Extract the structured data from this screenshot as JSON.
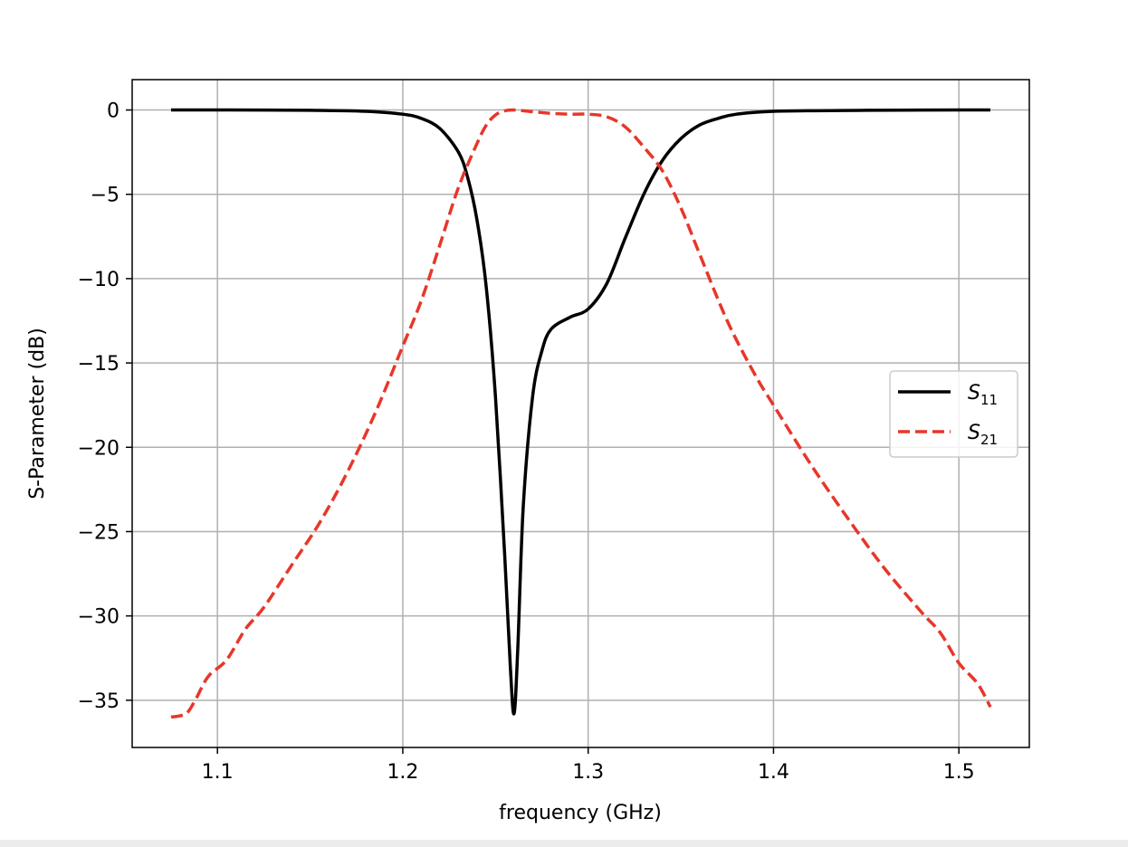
{
  "chart_data": {
    "type": "line",
    "xlabel": "frequency (GHz)",
    "ylabel": "S-Parameter (dB)",
    "xlim": [
      1.054,
      1.538
    ],
    "ylim": [
      -37.8,
      1.8
    ],
    "xticks": [
      1.1,
      1.2,
      1.3,
      1.4,
      1.5
    ],
    "xtick_labels": [
      "1.1",
      "1.2",
      "1.3",
      "1.4",
      "1.5"
    ],
    "yticks": [
      0,
      -5,
      -10,
      -15,
      -20,
      -25,
      -30,
      -35
    ],
    "ytick_labels": [
      "0",
      "−5",
      "−10",
      "−15",
      "−20",
      "−25",
      "−30",
      "−35"
    ],
    "grid": true,
    "legend_position": "center-right",
    "series": [
      {
        "name": "S11",
        "legend_base": "S",
        "legend_sub": "11",
        "color": "#000000",
        "style": "solid",
        "x": [
          1.075,
          1.1,
          1.15,
          1.18,
          1.2,
          1.21,
          1.22,
          1.23,
          1.235,
          1.24,
          1.245,
          1.25,
          1.255,
          1.258,
          1.26,
          1.262,
          1.265,
          1.27,
          1.275,
          1.28,
          1.29,
          1.3,
          1.31,
          1.32,
          1.33,
          1.34,
          1.35,
          1.36,
          1.37,
          1.38,
          1.4,
          1.45,
          1.5,
          1.517
        ],
        "y": [
          0,
          0,
          -0.02,
          -0.08,
          -0.25,
          -0.5,
          -1.1,
          -2.5,
          -4.0,
          -6.5,
          -10.5,
          -17.0,
          -26.5,
          -33.0,
          -35.8,
          -32.0,
          -23.5,
          -17.0,
          -14.3,
          -13.0,
          -12.3,
          -11.8,
          -10.3,
          -7.6,
          -5.0,
          -3.0,
          -1.7,
          -0.9,
          -0.5,
          -0.25,
          -0.08,
          -0.02,
          0,
          0
        ]
      },
      {
        "name": "S21",
        "legend_base": "S",
        "legend_sub": "21",
        "color": "#e8362a",
        "style": "dashed",
        "x": [
          1.075,
          1.083,
          1.088,
          1.095,
          1.105,
          1.115,
          1.125,
          1.14,
          1.155,
          1.17,
          1.185,
          1.2,
          1.21,
          1.22,
          1.23,
          1.24,
          1.245,
          1.25,
          1.255,
          1.26,
          1.27,
          1.28,
          1.29,
          1.3,
          1.31,
          1.32,
          1.33,
          1.34,
          1.35,
          1.36,
          1.375,
          1.39,
          1.4,
          1.42,
          1.44,
          1.46,
          1.48,
          1.49,
          1.5,
          1.51,
          1.517
        ],
        "y": [
          -36.0,
          -35.8,
          -35.0,
          -33.6,
          -32.6,
          -30.8,
          -29.5,
          -27.0,
          -24.5,
          -21.5,
          -18.0,
          -14.0,
          -11.3,
          -8.0,
          -4.6,
          -2.0,
          -0.9,
          -0.3,
          -0.05,
          0,
          -0.1,
          -0.2,
          -0.25,
          -0.25,
          -0.4,
          -1.0,
          -2.2,
          -3.6,
          -5.8,
          -8.5,
          -12.5,
          -15.7,
          -17.5,
          -21.0,
          -24.2,
          -27.2,
          -29.8,
          -31.0,
          -32.8,
          -34.0,
          -35.4
        ]
      }
    ]
  }
}
